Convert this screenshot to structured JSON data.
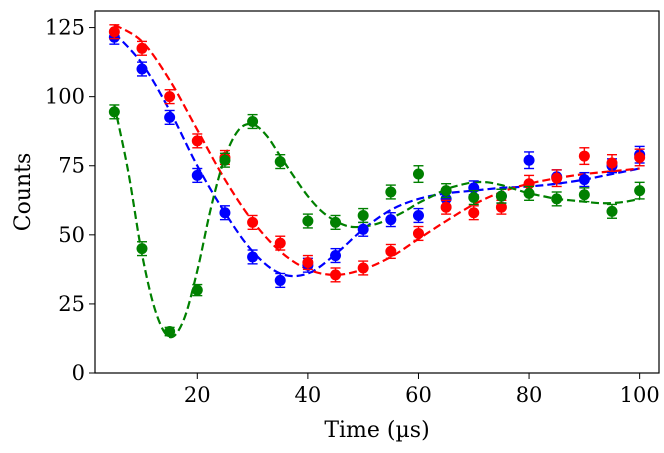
{
  "chart_data": {
    "type": "scatter",
    "title": "",
    "xlabel": "Time (µs)",
    "ylabel": "Counts",
    "xlim": [
      1.5,
      103.5
    ],
    "ylim": [
      0,
      131
    ],
    "xticks": [
      20,
      40,
      60,
      80,
      100
    ],
    "yticks": [
      0,
      25,
      50,
      75,
      100,
      125
    ],
    "grid": false,
    "legend": null,
    "series": [
      {
        "name": "blue",
        "color": "#0000ff",
        "x": [
          5,
          10,
          15,
          20,
          25,
          30,
          35,
          40,
          45,
          50,
          55,
          60,
          65,
          70,
          75,
          80,
          85,
          90,
          95,
          100
        ],
        "y": [
          121.5,
          110,
          92.5,
          71.5,
          58,
          42,
          33.5,
          39,
          42.5,
          52,
          55.5,
          57,
          63,
          67,
          64,
          77,
          71,
          70,
          75,
          79
        ],
        "err": [
          2.5,
          2.5,
          2.5,
          2.5,
          2.5,
          2.5,
          2.5,
          2.5,
          2.5,
          2.5,
          2.5,
          2.5,
          2.5,
          2.5,
          2.5,
          3,
          2.5,
          2.5,
          2.5,
          3
        ],
        "fit_x": [
          5,
          10,
          15,
          20,
          25,
          30,
          35,
          40,
          45,
          50,
          55,
          60,
          65,
          70,
          75,
          80,
          85,
          90,
          95,
          100
        ],
        "fit_y": [
          123,
          112,
          95,
          75,
          58,
          44,
          36,
          36,
          43,
          52,
          59,
          63,
          65,
          66,
          67,
          67.5,
          68.5,
          70,
          72,
          74
        ]
      },
      {
        "name": "red",
        "color": "#ff0000",
        "x": [
          5,
          10,
          15,
          20,
          25,
          30,
          35,
          40,
          45,
          50,
          55,
          60,
          65,
          70,
          75,
          80,
          85,
          90,
          95,
          100
        ],
        "y": [
          123.5,
          117.5,
          100,
          84,
          78,
          54.5,
          47,
          40,
          35.5,
          38,
          44,
          50.5,
          60,
          58,
          60,
          68.5,
          70.5,
          78.5,
          76,
          78
        ],
        "err": [
          2.5,
          2.5,
          2.5,
          2.5,
          2.5,
          2.5,
          2.5,
          2.5,
          2.5,
          2.5,
          2.5,
          2.5,
          2.5,
          2.5,
          2.5,
          3,
          3,
          3,
          3,
          3
        ],
        "fit_x": [
          5,
          10,
          15,
          20,
          25,
          30,
          35,
          40,
          45,
          50,
          55,
          60,
          65,
          70,
          75,
          80,
          85,
          90,
          95,
          100
        ],
        "fit_y": [
          126,
          120,
          106,
          88,
          70,
          55,
          44,
          37.5,
          35.5,
          37.5,
          42,
          48.5,
          55,
          61,
          65.5,
          68.5,
          70.5,
          72,
          73,
          74
        ]
      },
      {
        "name": "green",
        "color": "#008000",
        "x": [
          5,
          10,
          15,
          20,
          25,
          30,
          35,
          40,
          45,
          50,
          55,
          60,
          65,
          70,
          75,
          80,
          85,
          90,
          95,
          100
        ],
        "y": [
          94.5,
          45,
          15,
          30,
          77,
          91,
          76.5,
          55,
          54.5,
          57,
          65.5,
          72,
          66,
          63.5,
          64,
          65,
          63,
          64.5,
          58.5,
          66
        ],
        "err": [
          2.5,
          2.5,
          1.5,
          2,
          2.5,
          2.5,
          2.5,
          2.5,
          2.5,
          2.5,
          2.5,
          3,
          2.5,
          2.5,
          2.5,
          2.5,
          2.5,
          2.5,
          2.5,
          3
        ],
        "fit_x": [
          5,
          7.5,
          10,
          12.5,
          15,
          17.5,
          20,
          22.5,
          25,
          27.5,
          30,
          32.5,
          35,
          37.5,
          40,
          42.5,
          45,
          47.5,
          50,
          52.5,
          55,
          57.5,
          60,
          62.5,
          65,
          67.5,
          70,
          72.5,
          75,
          77.5,
          80,
          82.5,
          85,
          87.5,
          90,
          92.5,
          95,
          97.5,
          100
        ],
        "fit_y": [
          97,
          73,
          43,
          22,
          13,
          19,
          37,
          60,
          78,
          88,
          90,
          86,
          78.5,
          71,
          64,
          58.5,
          55,
          53,
          53,
          54,
          56,
          58.5,
          61.5,
          64,
          66.5,
          68,
          69,
          69,
          68,
          66.5,
          65,
          64,
          63,
          62.5,
          62,
          61.5,
          61.5,
          62,
          63
        ]
      }
    ]
  }
}
